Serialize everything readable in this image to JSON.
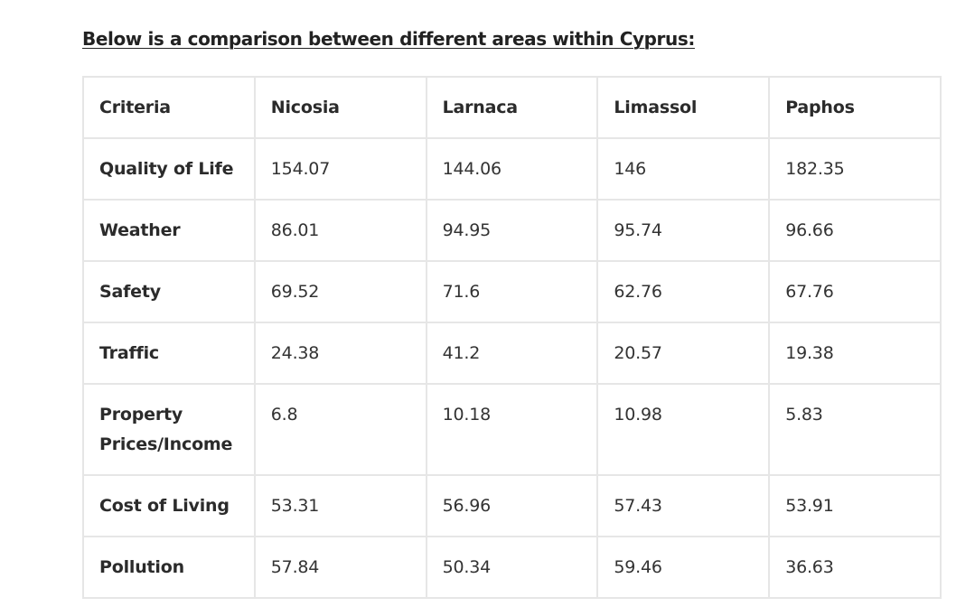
{
  "heading": "Below is a comparison between different areas within Cyprus:",
  "table": {
    "headers": [
      "Criteria",
      "Nicosia",
      "Larnaca",
      "Limassol",
      "Paphos"
    ],
    "rows": [
      {
        "label": "Quality of Life",
        "values": [
          "154.07",
          "144.06",
          "146",
          "182.35"
        ]
      },
      {
        "label": "Weather",
        "values": [
          "86.01",
          "94.95",
          "95.74",
          "96.66"
        ]
      },
      {
        "label": "Safety",
        "values": [
          "69.52",
          "71.6",
          "62.76",
          "67.76"
        ]
      },
      {
        "label": "Traffic",
        "values": [
          "24.38",
          "41.2",
          "20.57",
          "19.38"
        ]
      },
      {
        "label": "Property Prices/Income",
        "values": [
          "6.8",
          "10.18",
          "10.98",
          "5.83"
        ]
      },
      {
        "label": "Cost of Living",
        "values": [
          "53.31",
          "56.96",
          "57.43",
          "53.91"
        ]
      },
      {
        "label": "Pollution",
        "values": [
          "57.84",
          "50.34",
          "59.46",
          "36.63"
        ]
      }
    ]
  }
}
